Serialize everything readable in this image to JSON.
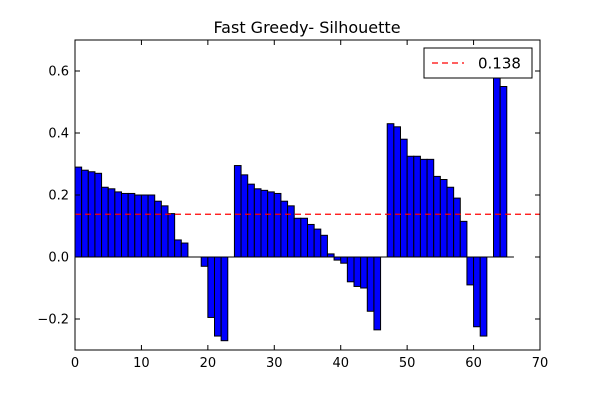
{
  "chart_data": {
    "type": "bar",
    "title": "Fast Greedy- Silhouette",
    "xlabel": "",
    "ylabel": "",
    "xlim": [
      0,
      70
    ],
    "ylim": [
      -0.3,
      0.7
    ],
    "x_ticks": [
      0,
      10,
      20,
      30,
      40,
      50,
      60,
      70
    ],
    "x_tick_labels": [
      "0",
      "10",
      "20",
      "30",
      "40",
      "50",
      "60",
      "70"
    ],
    "y_ticks": [
      -0.2,
      0.0,
      0.2,
      0.4,
      0.6
    ],
    "y_tick_labels": [
      "−0.2",
      "0.0",
      "0.2",
      "0.4",
      "0.6"
    ],
    "bar_width": 1,
    "bar_color": "#0000ff",
    "x": [
      0,
      1,
      2,
      3,
      4,
      5,
      6,
      7,
      8,
      9,
      10,
      11,
      12,
      13,
      14,
      15,
      16,
      17,
      18,
      19,
      20,
      21,
      22,
      23,
      24,
      25,
      26,
      27,
      28,
      29,
      30,
      31,
      32,
      33,
      34,
      35,
      36,
      37,
      38,
      39,
      40,
      41,
      42,
      43,
      44,
      45,
      46,
      47,
      48,
      49,
      50,
      51,
      52,
      53,
      54,
      55,
      56,
      57,
      58,
      59,
      60,
      61,
      62,
      63,
      64,
      65
    ],
    "values": [
      0.29,
      0.28,
      0.275,
      0.27,
      0.225,
      0.22,
      0.21,
      0.205,
      0.205,
      0.2,
      0.2,
      0.2,
      0.18,
      0.165,
      0.14,
      0.055,
      0.045,
      0.0,
      0.0,
      -0.03,
      -0.195,
      -0.255,
      -0.27,
      0.0,
      0.295,
      0.265,
      0.235,
      0.22,
      0.215,
      0.21,
      0.205,
      0.18,
      0.165,
      0.125,
      0.125,
      0.105,
      0.09,
      0.07,
      0.01,
      -0.01,
      -0.02,
      -0.08,
      -0.095,
      -0.1,
      -0.175,
      -0.235,
      0.0,
      0.43,
      0.42,
      0.38,
      0.325,
      0.325,
      0.315,
      0.315,
      0.26,
      0.25,
      0.225,
      0.19,
      0.115,
      -0.09,
      -0.225,
      -0.255,
      0.0,
      0.585,
      0.55,
      0.0
    ],
    "reference_line": {
      "value": 0.138,
      "label": "0.138",
      "color": "#ff0000",
      "style": "dashed"
    },
    "legend_placement": "top-right",
    "grid": false
  }
}
